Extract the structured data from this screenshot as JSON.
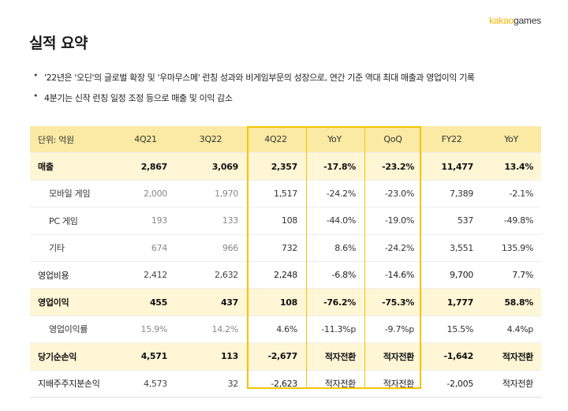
{
  "logo": {
    "part1": "kakao",
    "part2": "games"
  },
  "title": "실적 요약",
  "bullets": [
    "'22년은 '오딘'의 글로벌 확장 및 '우마무스메' 런칭 성과와 비게임부문의 성장으로, 연간 기준 역대 최대 매출과 영업이익 기록",
    "4분기는 신작 런칭 일정 조정 등으로 매출 및 이익 감소"
  ],
  "table": {
    "headers": [
      "단위: 억원",
      "4Q21",
      "3Q22",
      "4Q22",
      "YoY",
      "QoQ",
      "FY22",
      "YoY"
    ],
    "rows": [
      {
        "label": "매출",
        "values": [
          "2,867",
          "3,069",
          "2,357",
          "-17.8%",
          "-23.2%",
          "11,477",
          "13.4%"
        ]
      },
      {
        "label": "모바일 게임",
        "values": [
          "2,000",
          "1,970",
          "1,517",
          "-24.2%",
          "-23.0%",
          "7,389",
          "-2.1%"
        ]
      },
      {
        "label": "PC 게임",
        "values": [
          "193",
          "133",
          "108",
          "-44.0%",
          "-19.0%",
          "537",
          "-49.8%"
        ]
      },
      {
        "label": "기타",
        "values": [
          "674",
          "966",
          "732",
          "8.6%",
          "-24.2%",
          "3,551",
          "135.9%"
        ]
      },
      {
        "label": "영업비용",
        "values": [
          "2,412",
          "2,632",
          "2,248",
          "-6.8%",
          "-14.6%",
          "9,700",
          "7.7%"
        ]
      },
      {
        "label": "영업이익",
        "values": [
          "455",
          "437",
          "108",
          "-76.2%",
          "-75.3%",
          "1,777",
          "58.8%"
        ]
      },
      {
        "label": "영업이익률",
        "values": [
          "15.9%",
          "14.2%",
          "4.6%",
          "-11.3%p",
          "-9.7%p",
          "15.5%",
          "4.4%p"
        ]
      },
      {
        "label": "당기순손익",
        "values": [
          "4,571",
          "113",
          "-2,677",
          "적자전환",
          "적자전환",
          "-1,642",
          "적자전환"
        ]
      },
      {
        "label": "지배주주지분손익",
        "values": [
          "4,573",
          "32",
          "-2,623",
          "적자전환",
          "적자전환",
          "-2,005",
          "적자전환"
        ]
      }
    ]
  },
  "colors": {
    "accent": "#f5c400",
    "header_bg": "#fbeaa3",
    "highlight_row_bg": "#fff6d6"
  }
}
